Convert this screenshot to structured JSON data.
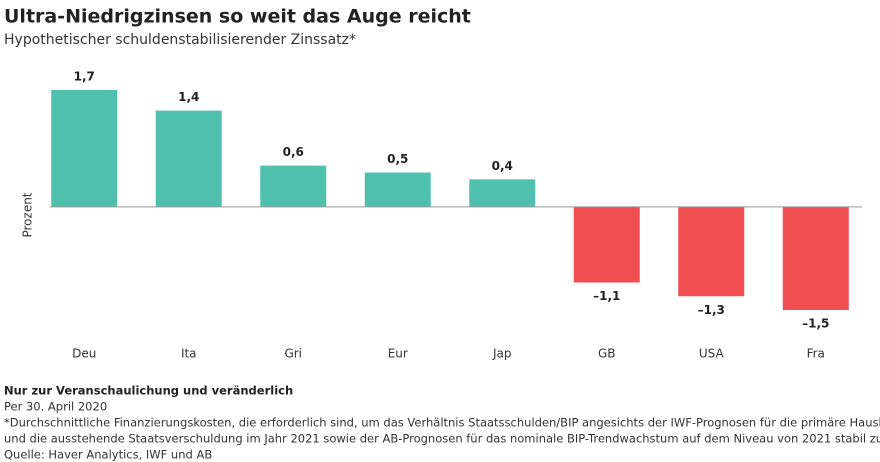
{
  "chart_data": {
    "type": "bar",
    "title": "Ultra-Niedrigzinsen so weit das Auge reicht",
    "subtitle": "Hypothetischer schuldenstabilisierender Zinssatz*",
    "y_label": "Prozent",
    "categories": [
      "Deu",
      "Ita",
      "Gri",
      "Eur",
      "Jap",
      "GB",
      "USA",
      "Fra"
    ],
    "values": [
      1.7,
      1.4,
      0.6,
      0.5,
      0.4,
      -1.1,
      -1.3,
      -1.5
    ],
    "value_labels": [
      "1,7",
      "1,4",
      "0,6",
      "0,5",
      "0,4",
      "–1,1",
      "–1,3",
      "–1,5"
    ],
    "color_positive": "#4fc0ad",
    "color_negative": "#ef4f50",
    "notes": [
      "Nur zur Veranschaulichung und veränderlich",
      "Per 30. April 2020",
      "*Durchschnittliche Finanzierungskosten, die erforderlich sind, um das Verhältnis Staatsschulden/BIP angesichts der IWF-Prognosen für die primäre Haushaltsposition",
      "und die ausstehende Staatsverschuldung im Jahr 2021 sowie der AB-Prognosen für das nominale BIP-Trendwachstum auf dem Niveau von 2021 stabil zu halten",
      "Quelle: Haver Analytics, IWF und AB"
    ]
  }
}
